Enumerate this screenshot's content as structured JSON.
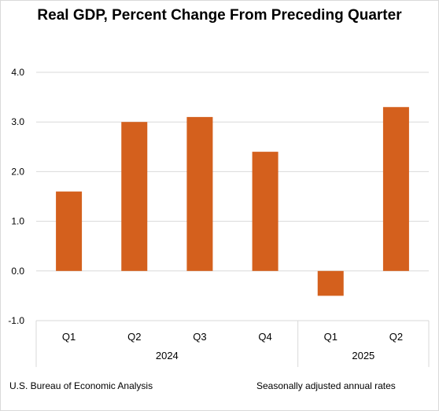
{
  "title": "Real GDP, Percent Change From Preceding Quarter",
  "footer": {
    "source": "U.S. Bureau of Economic Analysis",
    "note": "Seasonally adjusted annual rates"
  },
  "colors": {
    "bar": "#d4601d",
    "grid": "#d9d9d9",
    "text": "#000000"
  },
  "chart_data": {
    "type": "bar",
    "categories": [
      "Q1",
      "Q2",
      "Q3",
      "Q4",
      "Q1",
      "Q2"
    ],
    "groups": [
      {
        "label": "2024",
        "categories": [
          "Q1",
          "Q2",
          "Q3",
          "Q4"
        ]
      },
      {
        "label": "2025",
        "categories": [
          "Q1",
          "Q2"
        ]
      }
    ],
    "values": [
      1.6,
      3.0,
      3.1,
      2.4,
      -0.5,
      3.3
    ],
    "yticks": [
      "4.0",
      "3.0",
      "2.0",
      "1.0",
      "0.0",
      "-1.0"
    ],
    "ylim": [
      -1.0,
      4.0
    ],
    "grid": true
  }
}
